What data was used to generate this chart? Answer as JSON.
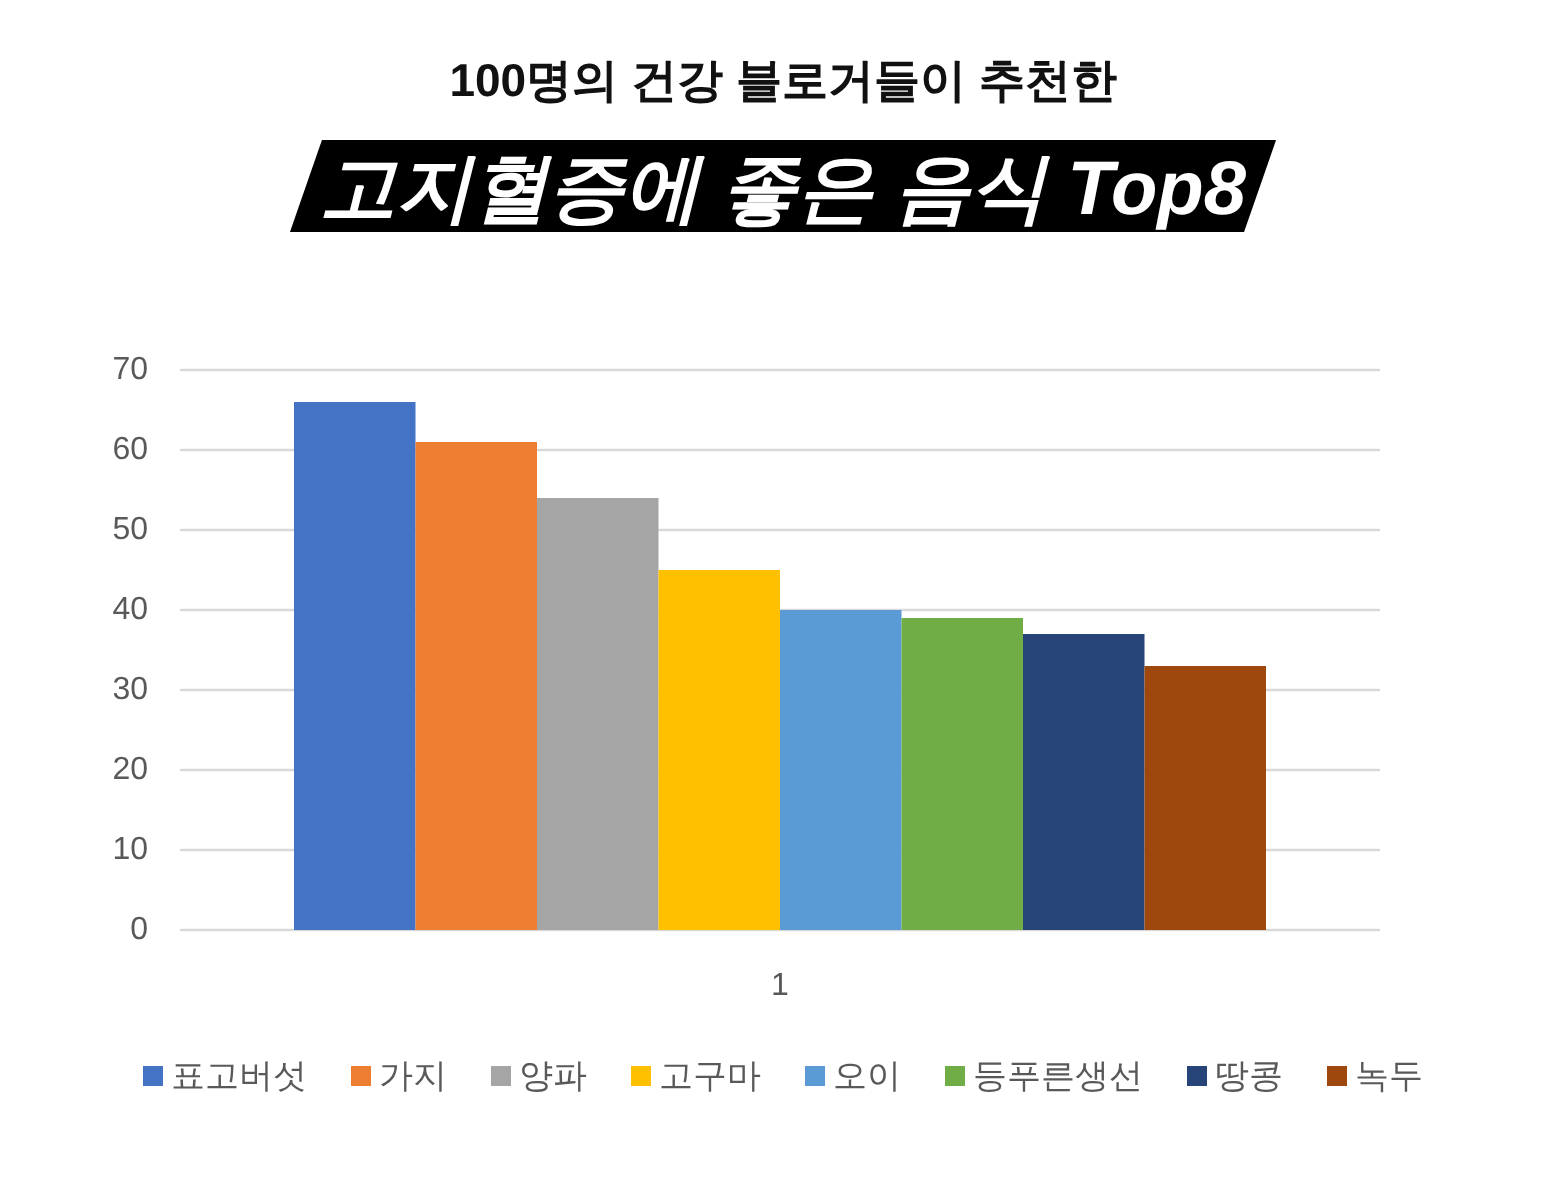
{
  "chart_data": {
    "type": "bar",
    "subtitle": "100명의 건강 블로거들이 추천한",
    "title": "고지혈증에 좋은 음식 Top8",
    "categories": [
      "1"
    ],
    "series": [
      {
        "name": "표고버섯",
        "color": "#4472c4",
        "values": [
          66
        ]
      },
      {
        "name": "가지",
        "color": "#ed7d31",
        "values": [
          61
        ]
      },
      {
        "name": "양파",
        "color": "#a5a5a5",
        "values": [
          54
        ]
      },
      {
        "name": "고구마",
        "color": "#ffc000",
        "values": [
          45
        ]
      },
      {
        "name": "오이",
        "color": "#5b9bd5",
        "values": [
          40
        ]
      },
      {
        "name": "등푸른생선",
        "color": "#70ad47",
        "values": [
          39
        ]
      },
      {
        "name": "땅콩",
        "color": "#264478",
        "values": [
          37
        ]
      },
      {
        "name": "녹두",
        "color": "#9e480e",
        "values": [
          33
        ]
      }
    ],
    "ylim": [
      0,
      70
    ],
    "yticks": [
      0,
      10,
      20,
      30,
      40,
      50,
      60,
      70
    ],
    "grid": "y",
    "legend": "bottom"
  }
}
